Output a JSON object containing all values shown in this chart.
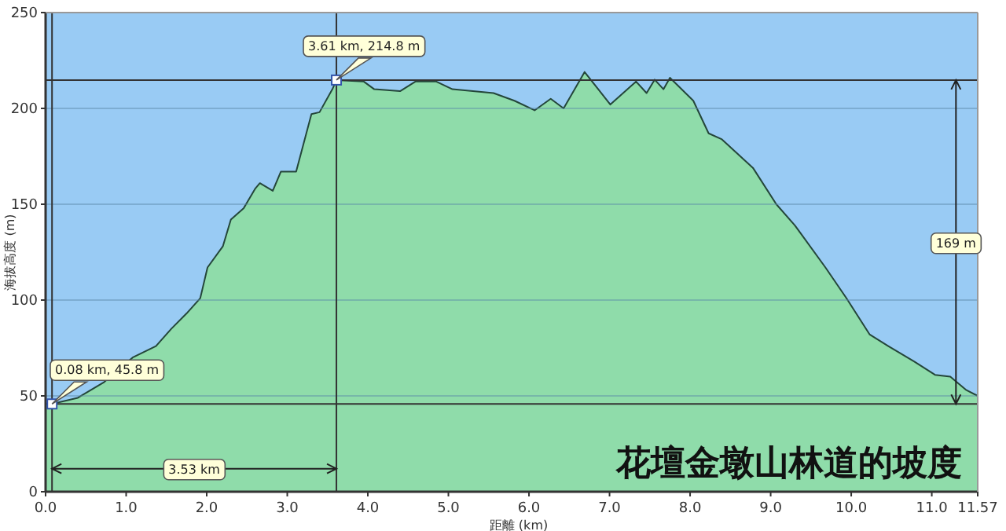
{
  "chart_data": {
    "type": "area",
    "title": "花壇金墩山林道的坡度",
    "xlabel": "距離 (km)",
    "ylabel": "海拔高度 (m)",
    "x": [
      0,
      0.08,
      0.4,
      0.72,
      1.08,
      1.37,
      1.56,
      1.75,
      1.92,
      2.01,
      2.2,
      2.3,
      2.46,
      2.6,
      2.66,
      2.82,
      2.92,
      3.11,
      3.3,
      3.4,
      3.56,
      3.61,
      3.95,
      4.08,
      4.4,
      4.59,
      4.85,
      5.05,
      5.56,
      5.82,
      6.07,
      6.27,
      6.43,
      6.69,
      7.01,
      7.33,
      7.46,
      7.56,
      7.67,
      7.75,
      8.04,
      8.23,
      8.39,
      8.78,
      9.07,
      9.3,
      9.68,
      9.94,
      10.23,
      10.46,
      10.78,
      11.04,
      11.23,
      11.43,
      11.57
    ],
    "series": [
      {
        "color": "#8fdcaa",
        "values": [
          46,
          45.8,
          49,
          57,
          70,
          76,
          85,
          93,
          101,
          117,
          128,
          142,
          148,
          158,
          161,
          157,
          167,
          167,
          197,
          198,
          210,
          214.8,
          214,
          210,
          209,
          214,
          214,
          210,
          208,
          204,
          199,
          205,
          200,
          219,
          202,
          214,
          208,
          215,
          210,
          216,
          204,
          187,
          184,
          169,
          150,
          139,
          117,
          101,
          82,
          76,
          68,
          61,
          60,
          53,
          50
        ]
      }
    ],
    "xlim": [
      0,
      11.57
    ],
    "xticks": [
      {
        "value": 0,
        "label": "0.0"
      },
      {
        "value": 1,
        "label": "1.0"
      },
      {
        "value": 2,
        "label": "2.0"
      },
      {
        "value": 3,
        "label": "3.0"
      },
      {
        "value": 4,
        "label": "4.0"
      },
      {
        "value": 5,
        "label": "5.0"
      },
      {
        "value": 6,
        "label": "6.0"
      },
      {
        "value": 7,
        "label": "7.0"
      },
      {
        "value": 8,
        "label": "8.0"
      },
      {
        "value": 9,
        "label": "9.0"
      },
      {
        "value": 10,
        "label": "10.0"
      },
      {
        "value": 11,
        "label": "11.0"
      },
      11.57
    ],
    "ylim": [
      0,
      250
    ],
    "yticks": [
      0,
      50,
      100,
      150,
      200,
      250
    ],
    "grid": "y",
    "ref_lines": [
      {
        "axis": "y",
        "value": 45.8,
        "color": "#333333"
      },
      {
        "axis": "y",
        "value": 214.8,
        "color": "#333333"
      },
      {
        "axis": "x",
        "value": 0.08,
        "color": "#333333"
      },
      {
        "axis": "x",
        "value": 3.61,
        "color": "#333333"
      }
    ],
    "annotations": [
      {
        "text": "0.08 km, 45.8 m",
        "x": 0.08,
        "y": 45.8
      },
      {
        "text": "3.61 km, 214.8 m",
        "x": 3.61,
        "y": 214.8
      },
      {
        "text": "3.53 km",
        "x": 1.845,
        "y": 12
      },
      {
        "text": "169 m",
        "x": 11.3,
        "y": 130
      }
    ]
  }
}
